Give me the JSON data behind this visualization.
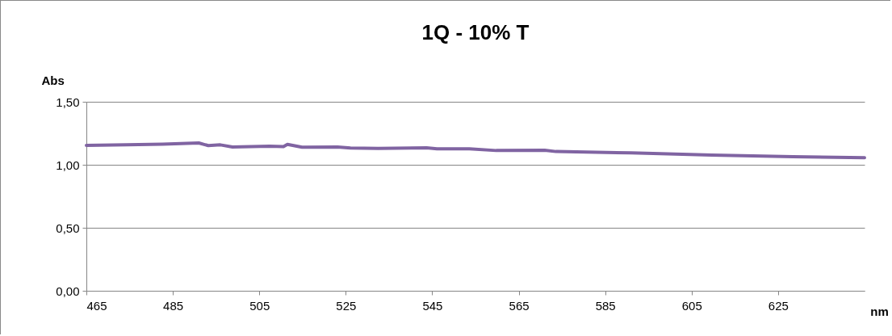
{
  "chart_data": {
    "type": "line",
    "title": "1Q - 10% T",
    "xlabel": "nm",
    "ylabel": "Abs",
    "x": [
      465,
      474.3,
      482.6,
      491,
      493.2,
      496,
      498.8,
      507.4,
      510.6,
      511.5,
      514.9,
      523.1,
      526.1,
      532.5,
      543.7,
      546.1,
      553.6,
      559.8,
      571,
      573.6,
      591,
      609.7,
      628.4,
      645
    ],
    "series": [
      {
        "color": "#8064a2",
        "values": [
          1.154,
          1.158,
          1.164,
          1.173,
          1.152,
          1.158,
          1.141,
          1.147,
          1.145,
          1.162,
          1.139,
          1.141,
          1.133,
          1.13,
          1.135,
          1.126,
          1.126,
          1.113,
          1.115,
          1.105,
          1.094,
          1.077,
          1.064,
          1.056
        ]
      }
    ],
    "xlim": [
      465,
      645
    ],
    "xticks": [
      465,
      485,
      505,
      525,
      545,
      565,
      585,
      605,
      625
    ],
    "ylim": [
      0,
      1.5
    ],
    "yticks": [
      {
        "value": 0,
        "label": "0,00"
      },
      {
        "value": 0.5,
        "label": "0,50"
      },
      {
        "value": 1,
        "label": "1,00"
      },
      {
        "value": 1.5,
        "label": "1,50"
      }
    ],
    "grid": "y",
    "marker": "none",
    "line_style": "solid"
  }
}
